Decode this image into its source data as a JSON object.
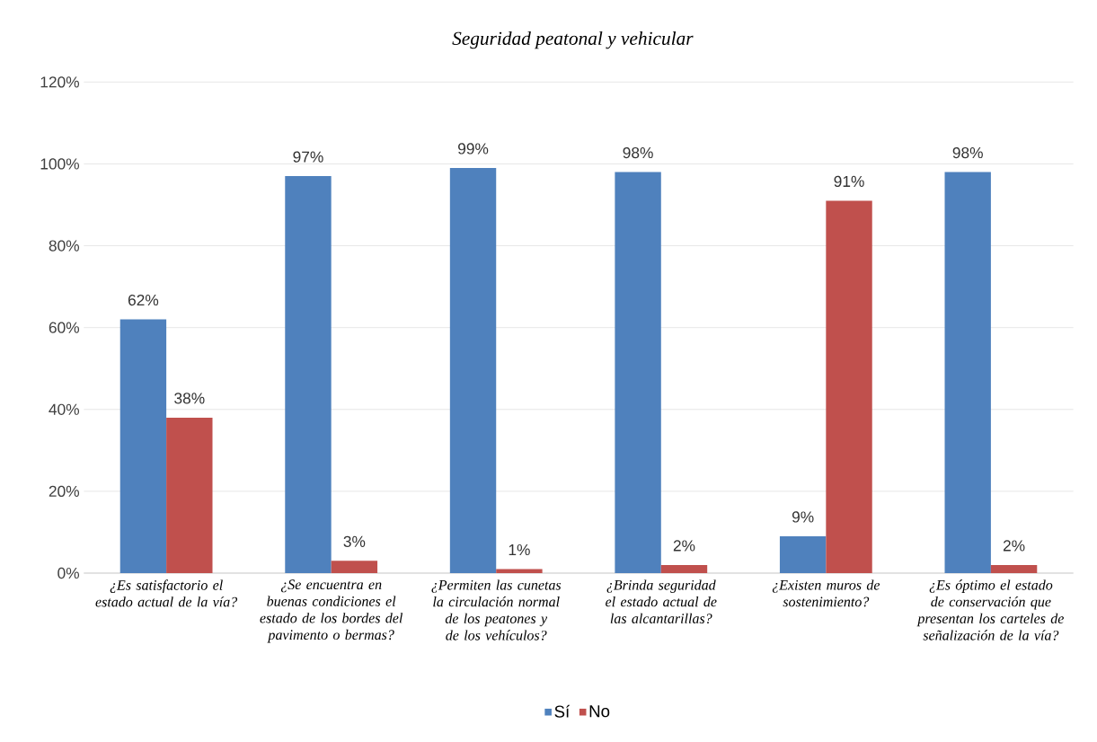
{
  "chart_data": {
    "type": "bar",
    "title": "Seguridad peatonal y vehicular",
    "categories": [
      "¿Es satisfactorio el estado actual de la vía?",
      "¿Se encuentra en buenas condiciones el estado de los bordes del pavimento o bermas?",
      "¿Permiten las cunetas la circulación normal de los peatones y de los vehículos?",
      "¿Brinda seguridad el estado actual de las alcantarillas?",
      "¿Existen muros de sostenimiento?",
      "¿Es óptimo el estado de conservación que presentan los carteles de señalización de la vía?"
    ],
    "series": [
      {
        "name": "Sí",
        "color": "#4f81bd",
        "values": [
          62,
          97,
          99,
          98,
          9,
          98
        ],
        "value_labels": [
          "62%",
          "97%",
          "99%",
          "98%",
          "9%",
          "98%"
        ]
      },
      {
        "name": "No",
        "color": "#c0504d",
        "values": [
          38,
          3,
          1,
          2,
          91,
          2
        ],
        "value_labels": [
          "38%",
          "3%",
          "1%",
          "2%",
          "91%",
          "2%"
        ]
      }
    ],
    "ylim": [
      0,
      120
    ],
    "yticks": [
      {
        "value": 0,
        "label": "0%"
      },
      {
        "value": 20,
        "label": "20%"
      },
      {
        "value": 40,
        "label": "40%"
      },
      {
        "value": 60,
        "label": "60%"
      },
      {
        "value": 80,
        "label": "80%"
      },
      {
        "value": 100,
        "label": "100%"
      },
      {
        "value": 120,
        "label": "120%"
      }
    ],
    "grid": "y",
    "legend": "bottom"
  }
}
